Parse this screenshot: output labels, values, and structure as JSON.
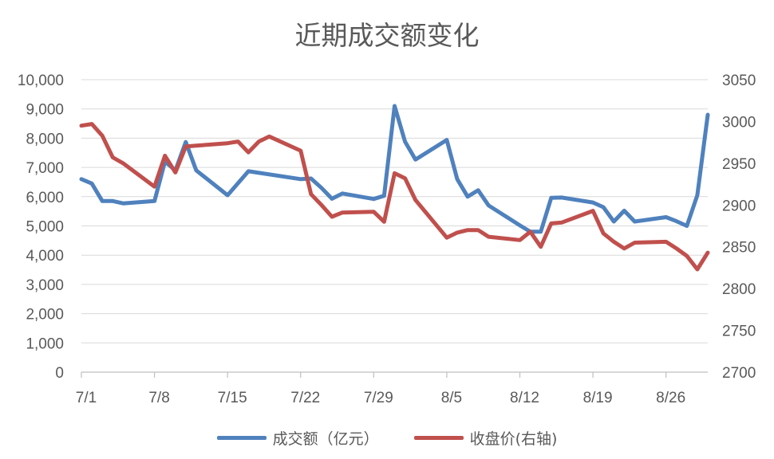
{
  "chart_data": {
    "type": "line",
    "title": "近期成交额变化",
    "x_ticks": [
      "7/1",
      "7/8",
      "7/15",
      "7/22",
      "7/29",
      "8/5",
      "8/12",
      "8/19",
      "8/26"
    ],
    "y_left_ticks": [
      "0",
      "1,000",
      "2,000",
      "3,000",
      "4,000",
      "5,000",
      "6,000",
      "7,000",
      "8,000",
      "9,000",
      "10,000"
    ],
    "y_right_ticks": [
      "2700",
      "2750",
      "2800",
      "2850",
      "2900",
      "2950",
      "3000",
      "3050"
    ],
    "y_left_range": [
      0,
      10000
    ],
    "y_right_range": [
      2700,
      3050
    ],
    "grid": "horizontal",
    "legend_position": "bottom",
    "series": [
      {
        "name": "成交额（亿元）",
        "axis": "left",
        "color": "#4f81bd",
        "points": [
          [
            "07-01",
            6600
          ],
          [
            "07-02",
            6450
          ],
          [
            "07-03",
            5850
          ],
          [
            "07-04",
            5850
          ],
          [
            "07-05",
            5770
          ],
          [
            "07-08",
            5850
          ],
          [
            "07-09",
            7200
          ],
          [
            "07-10",
            6900
          ],
          [
            "07-11",
            7870
          ],
          [
            "07-12",
            6900
          ],
          [
            "07-15",
            6050
          ],
          [
            "07-17",
            6870
          ],
          [
            "07-22",
            6600
          ],
          [
            "07-23",
            6620
          ],
          [
            "07-24",
            6300
          ],
          [
            "07-25",
            5930
          ],
          [
            "07-26",
            6110
          ],
          [
            "07-29",
            5920
          ],
          [
            "07-30",
            6030
          ],
          [
            "07-31",
            9100
          ],
          [
            "08-01",
            7880
          ],
          [
            "08-02",
            7270
          ],
          [
            "08-05",
            7940
          ],
          [
            "08-06",
            6600
          ],
          [
            "08-07",
            6000
          ],
          [
            "08-08",
            6220
          ],
          [
            "08-09",
            5700
          ],
          [
            "08-12",
            5020
          ],
          [
            "08-13",
            4800
          ],
          [
            "08-14",
            4800
          ],
          [
            "08-15",
            5960
          ],
          [
            "08-16",
            5970
          ],
          [
            "08-19",
            5800
          ],
          [
            "08-20",
            5640
          ],
          [
            "08-21",
            5150
          ],
          [
            "08-22",
            5520
          ],
          [
            "08-23",
            5150
          ],
          [
            "08-26",
            5300
          ],
          [
            "08-27",
            5160
          ],
          [
            "08-28",
            5000
          ],
          [
            "08-29",
            6050
          ],
          [
            "08-30",
            8800
          ]
        ]
      },
      {
        "name": "收盘价(右轴)",
        "axis": "right",
        "color": "#c0504d",
        "points": [
          [
            "07-01",
            2995
          ],
          [
            "07-02",
            2997
          ],
          [
            "07-03",
            2983
          ],
          [
            "07-04",
            2957
          ],
          [
            "07-05",
            2950
          ],
          [
            "07-08",
            2922
          ],
          [
            "07-09",
            2959
          ],
          [
            "07-10",
            2939
          ],
          [
            "07-11",
            2970
          ],
          [
            "07-12",
            2971
          ],
          [
            "07-15",
            2974
          ],
          [
            "07-16",
            2976
          ],
          [
            "07-17",
            2963
          ],
          [
            "07-18",
            2976
          ],
          [
            "07-19",
            2982
          ],
          [
            "07-22",
            2965
          ],
          [
            "07-23",
            2913
          ],
          [
            "07-24",
            2900
          ],
          [
            "07-25",
            2886
          ],
          [
            "07-26",
            2891
          ],
          [
            "07-29",
            2892
          ],
          [
            "07-30",
            2880
          ],
          [
            "07-31",
            2938
          ],
          [
            "08-01",
            2932
          ],
          [
            "08-02",
            2906
          ],
          [
            "08-05",
            2861
          ],
          [
            "08-06",
            2867
          ],
          [
            "08-07",
            2870
          ],
          [
            "08-08",
            2870
          ],
          [
            "08-09",
            2862
          ],
          [
            "08-12",
            2858
          ],
          [
            "08-13",
            2868
          ],
          [
            "08-14",
            2850
          ],
          [
            "08-15",
            2878
          ],
          [
            "08-16",
            2879
          ],
          [
            "08-19",
            2893
          ],
          [
            "08-20",
            2866
          ],
          [
            "08-21",
            2856
          ],
          [
            "08-22",
            2848
          ],
          [
            "08-23",
            2855
          ],
          [
            "08-26",
            2856
          ],
          [
            "08-27",
            2848
          ],
          [
            "08-28",
            2839
          ],
          [
            "08-29",
            2823
          ],
          [
            "08-30",
            2843
          ]
        ]
      }
    ]
  }
}
